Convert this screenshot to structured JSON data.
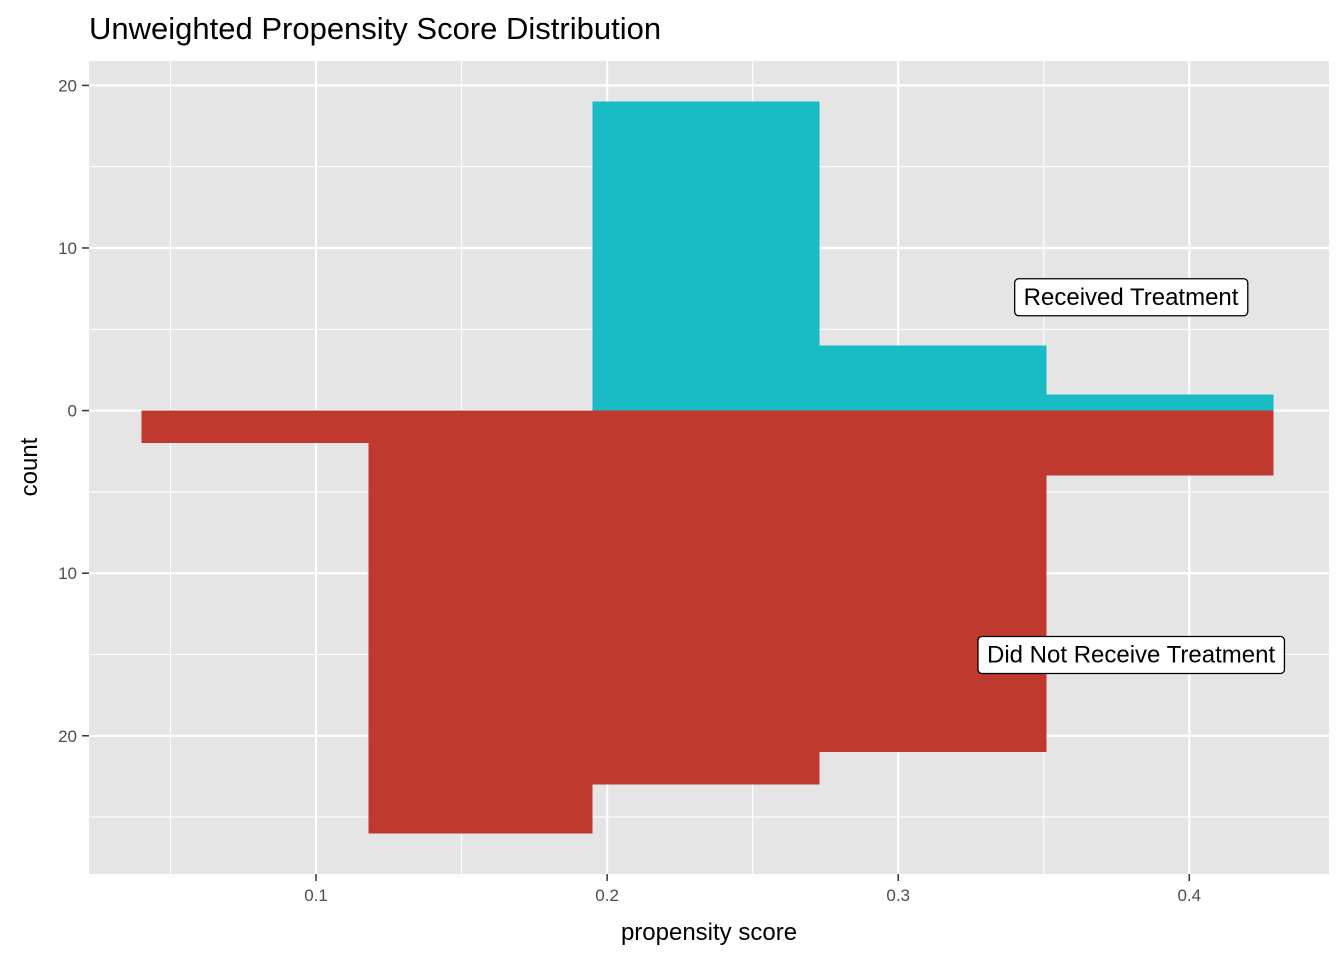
{
  "chart_data": {
    "type": "bar",
    "subtype": "mirrored-histogram",
    "title": "Unweighted Propensity Score Distribution",
    "xlabel": "propensity score",
    "ylabel": "count",
    "xlim": [
      0.022,
      0.448
    ],
    "ylim": [
      -28.5,
      21.5
    ],
    "x_ticks": [
      0.1,
      0.2,
      0.3,
      0.4
    ],
    "x_tick_labels": [
      "0.1",
      "0.2",
      "0.3",
      "0.4"
    ],
    "y_ticks": [
      20,
      10,
      0,
      -10,
      -20
    ],
    "y_tick_labels": [
      "20",
      "10",
      "0",
      "10",
      "20"
    ],
    "grid": true,
    "legend": "none",
    "series": [
      {
        "key": "treated",
        "color": "#19bcc4",
        "direction": "up",
        "bins": [
          {
            "x0": 0.195,
            "x1": 0.273,
            "count": 19
          },
          {
            "x0": 0.273,
            "x1": 0.351,
            "count": 4
          },
          {
            "x0": 0.351,
            "x1": 0.429,
            "count": 1
          }
        ]
      },
      {
        "key": "control",
        "color": "#c0392e",
        "direction": "down",
        "bins": [
          {
            "x0": 0.04,
            "x1": 0.118,
            "count": 2
          },
          {
            "x0": 0.118,
            "x1": 0.195,
            "count": 26
          },
          {
            "x0": 0.195,
            "x1": 0.273,
            "count": 23
          },
          {
            "x0": 0.273,
            "x1": 0.351,
            "count": 21
          },
          {
            "x0": 0.351,
            "x1": 0.429,
            "count": 4
          }
        ]
      }
    ],
    "annotations": [
      {
        "text": "Received Treatment",
        "x": 0.38,
        "y": 7
      },
      {
        "text": "Did Not Receive Treatment",
        "x": 0.38,
        "y": -15
      }
    ]
  },
  "colors": {
    "panel_bg": "#e5e5e5",
    "grid": "#ffffff"
  }
}
